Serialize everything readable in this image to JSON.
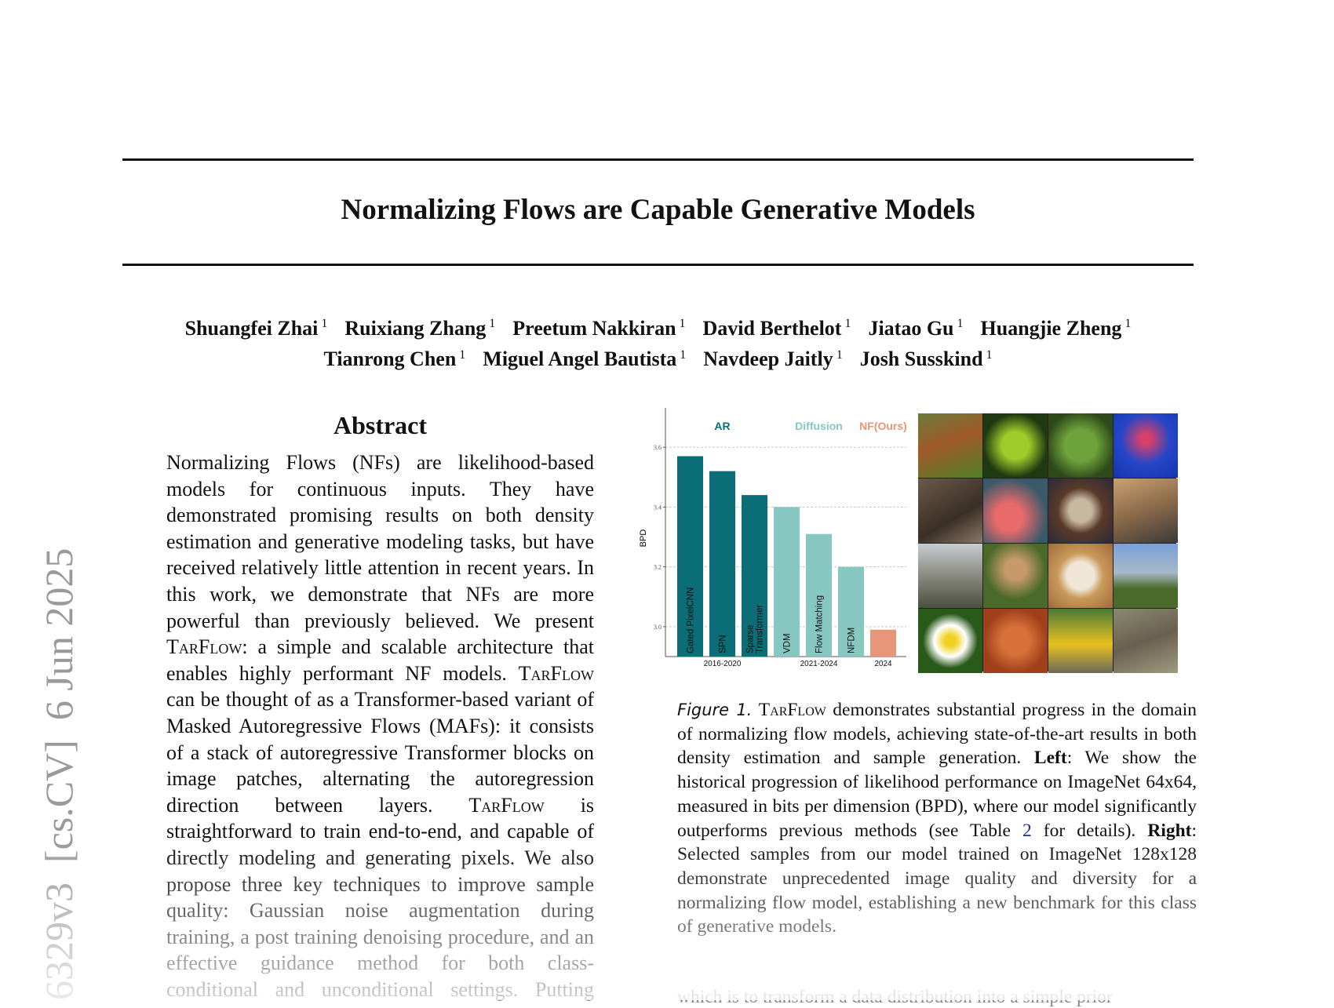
{
  "sidebar": "6329v3  [cs.CV]  6 Jun 2025",
  "header": {
    "title": "Normalizing Flows are Capable Generative Models"
  },
  "authors": [
    [
      {
        "name": "Shuangfei Zhai",
        "affiliation": 1
      },
      {
        "name": "Ruixiang Zhang",
        "affiliation": 1
      },
      {
        "name": "Preetum Nakkiran",
        "affiliation": 1
      },
      {
        "name": "David Berthelot",
        "affiliation": 1
      },
      {
        "name": "Jiatao Gu",
        "affiliation": 1
      },
      {
        "name": "Huangjie Zheng",
        "affiliation": 1
      }
    ],
    [
      {
        "name": "Tianrong Chen",
        "affiliation": 1
      },
      {
        "name": "Miguel Angel Bautista",
        "affiliation": 1
      },
      {
        "name": "Navdeep Jaitly",
        "affiliation": 1
      },
      {
        "name": "Josh Susskind",
        "affiliation": 1
      }
    ]
  ],
  "abstract": {
    "heading": "Abstract",
    "parts": [
      "Normalizing Flows (NFs) are likelihood-based models for continuous inputs. They have demonstrated promising results on both density estimation and generative modeling tasks, but have received relatively little attention in recent years. In this work, we demonstrate that NFs are more powerful than previously believed. We present",
      "TarFlow",
      ": a simple and scalable architecture that enables highly performant NF models.",
      "TarFlow",
      "can be thought of as a Transformer-based variant of Masked Autoregressive Flows (MAFs): it consists of a stack of autoregressive Transformer blocks on image patches, alternating the autoregression direction between layers.",
      "TarFlow",
      "is straightforward to train end-to-end, and capable of directly modeling and generating pixels. We also propose three key techniques to improve sample quality: Gaussian noise augmentation during training, a post training denoising procedure, and an effective guidance method for both class-conditional and unconditional settings. Putting"
    ]
  },
  "chart_data": {
    "type": "bar",
    "ylabel": "BPD",
    "categories": [
      "Gated PixelCNN",
      "SPN",
      "Sparse Transformer",
      "VDM",
      "Flow Matching",
      "NFDM",
      null
    ],
    "series": [
      {
        "name": "AR",
        "color": "#0b6d76",
        "period": "2016-2020",
        "values": [
          3.57,
          3.52,
          3.44,
          null,
          null,
          null,
          null
        ]
      },
      {
        "name": "Diffusion",
        "color": "#86c8c1",
        "period": "2021-2024",
        "values": [
          null,
          null,
          null,
          3.4,
          3.31,
          3.2,
          null
        ]
      },
      {
        "name": "NF(Ours)",
        "color": "#e8957a",
        "period": "2024",
        "values": [
          null,
          null,
          null,
          null,
          null,
          null,
          2.99
        ]
      }
    ],
    "ylim": [
      2.9,
      3.7
    ],
    "yticks": [
      {
        "value": 3.0,
        "label": "3.0"
      },
      {
        "value": 3.2,
        "label": "3.2"
      },
      {
        "value": 3.4,
        "label": "3.4"
      },
      {
        "value": 3.6,
        "label": "3.6"
      }
    ],
    "grid": true
  },
  "caption": {
    "label": "Figure 1.",
    "parts": [
      "TarFlow",
      "demonstrates substantial progress in the domain of normalizing flow models, achieving state-of-the-art results in both density estimation and sample generation.",
      "Left",
      ": We show the historical progression of likelihood performance on ImageNet 64x64, measured in bits per dimension (BPD), where our model significantly outperforms previous methods (see Table",
      "2",
      "for details).",
      "Right",
      ": Selected samples from our model trained on ImageNet 128x128 demonstrate unprecedented image quality and diversity for a normalizing flow model, establishing a new benchmark for this class of generative models."
    ]
  },
  "body": {
    "line": "which is to transform a data distribution into a simple prior"
  }
}
